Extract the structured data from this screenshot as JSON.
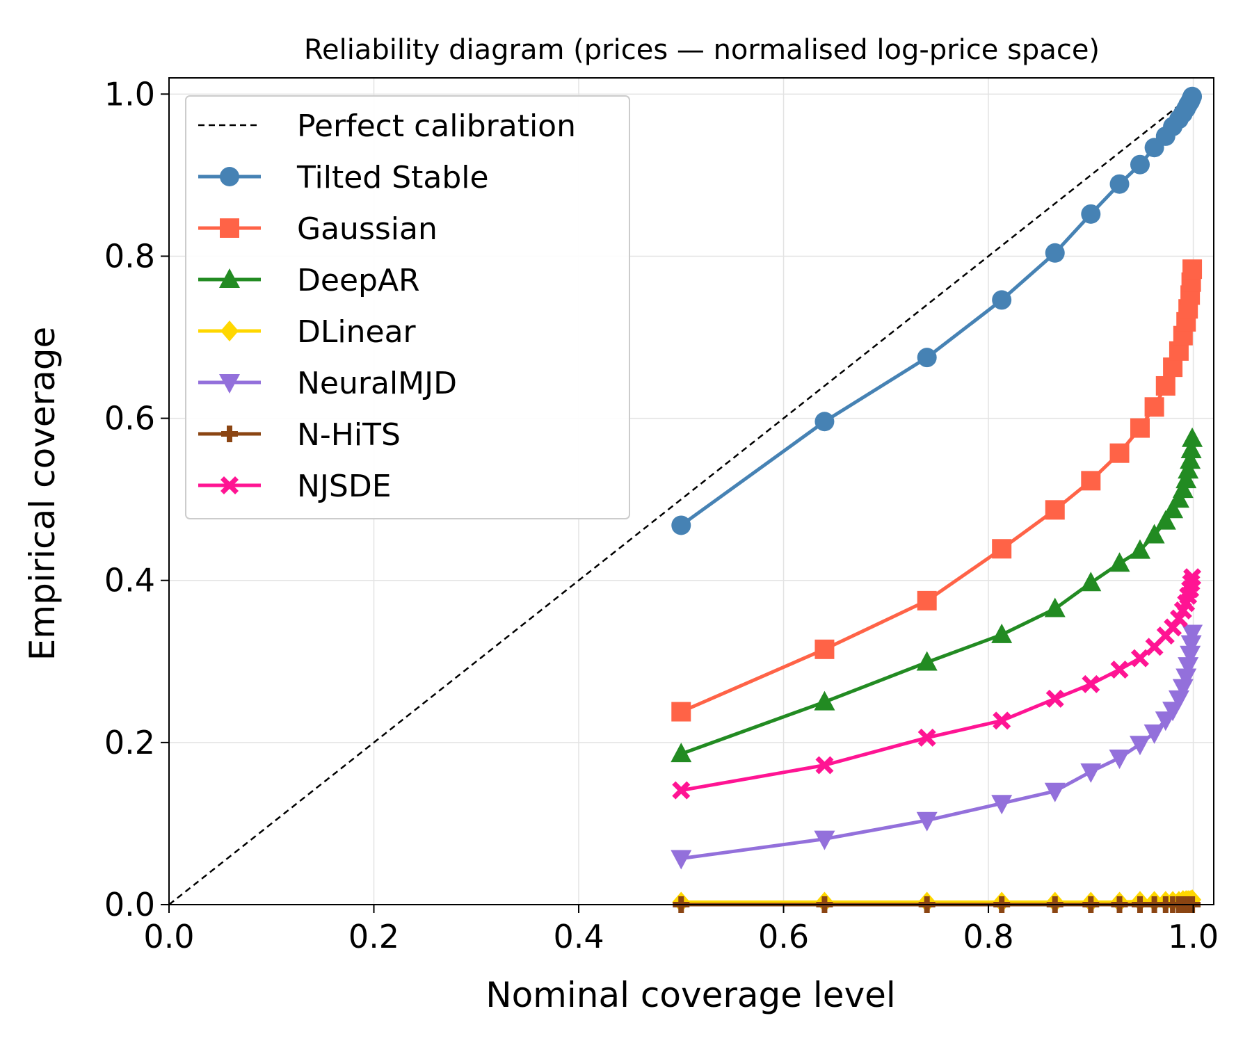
{
  "chart_data": {
    "type": "line",
    "title": "Reliability diagram (prices — normalised log-price space)",
    "xlabel": "Nominal coverage level",
    "ylabel": "Empirical coverage",
    "xlim": [
      0.0,
      1.02
    ],
    "ylim": [
      0.0,
      1.02
    ],
    "xticks": [
      "0.0",
      "0.2",
      "0.4",
      "0.6",
      "0.8",
      "1.0"
    ],
    "yticks": [
      "0.0",
      "0.2",
      "0.4",
      "0.6",
      "0.8",
      "1.0"
    ],
    "grid": true,
    "legend_position": "upper-left",
    "reference_line": {
      "name": "Perfect calibration",
      "x": [
        0.0,
        1.0
      ],
      "y": [
        0.0,
        1.0
      ],
      "color": "#000000",
      "style": "dashed"
    },
    "x": [
      0.5,
      0.64,
      0.74,
      0.813,
      0.865,
      0.9,
      0.928,
      0.948,
      0.962,
      0.973,
      0.98,
      0.986,
      0.99,
      0.993,
      0.995,
      0.997,
      0.998,
      0.999
    ],
    "series": [
      {
        "name": "Tilted Stable",
        "color": "#4682B4",
        "marker": "circle",
        "values": [
          0.468,
          0.596,
          0.675,
          0.746,
          0.804,
          0.852,
          0.889,
          0.913,
          0.934,
          0.948,
          0.96,
          0.969,
          0.976,
          0.982,
          0.987,
          0.991,
          0.994,
          0.997
        ]
      },
      {
        "name": "Gaussian",
        "color": "#FF6347",
        "marker": "square",
        "values": [
          0.238,
          0.315,
          0.375,
          0.439,
          0.487,
          0.523,
          0.557,
          0.588,
          0.614,
          0.64,
          0.663,
          0.683,
          0.702,
          0.719,
          0.735,
          0.752,
          0.768,
          0.784
        ]
      },
      {
        "name": "DeepAR",
        "color": "#228B22",
        "marker": "triangle-up",
        "values": [
          0.186,
          0.25,
          0.299,
          0.333,
          0.365,
          0.397,
          0.421,
          0.437,
          0.456,
          0.473,
          0.487,
          0.5,
          0.512,
          0.524,
          0.536,
          0.548,
          0.561,
          0.575
        ]
      },
      {
        "name": "DLinear",
        "color": "#FFD700",
        "marker": "diamond",
        "values": [
          0.003,
          0.003,
          0.003,
          0.003,
          0.003,
          0.003,
          0.003,
          0.004,
          0.004,
          0.004,
          0.004,
          0.004,
          0.005,
          0.005,
          0.005,
          0.005,
          0.005,
          0.006
        ]
      },
      {
        "name": "NeuralMJD",
        "color": "#9370DB",
        "marker": "triangle-down",
        "values": [
          0.057,
          0.081,
          0.104,
          0.125,
          0.14,
          0.164,
          0.181,
          0.198,
          0.212,
          0.228,
          0.24,
          0.254,
          0.268,
          0.281,
          0.295,
          0.309,
          0.322,
          0.335
        ]
      },
      {
        "name": "N-HiTS",
        "color": "#8B4513",
        "marker": "plus",
        "values": [
          0.0,
          0.0,
          0.0,
          0.0,
          0.0,
          0.0,
          0.0,
          0.0,
          0.0,
          0.0,
          0.0,
          0.0,
          0.0,
          0.0,
          0.0,
          0.0,
          0.0,
          0.0
        ]
      },
      {
        "name": "NJSDE",
        "color": "#FF1493",
        "marker": "x",
        "values": [
          0.141,
          0.172,
          0.206,
          0.227,
          0.254,
          0.272,
          0.29,
          0.304,
          0.318,
          0.332,
          0.342,
          0.353,
          0.363,
          0.372,
          0.381,
          0.389,
          0.397,
          0.404
        ]
      }
    ]
  }
}
